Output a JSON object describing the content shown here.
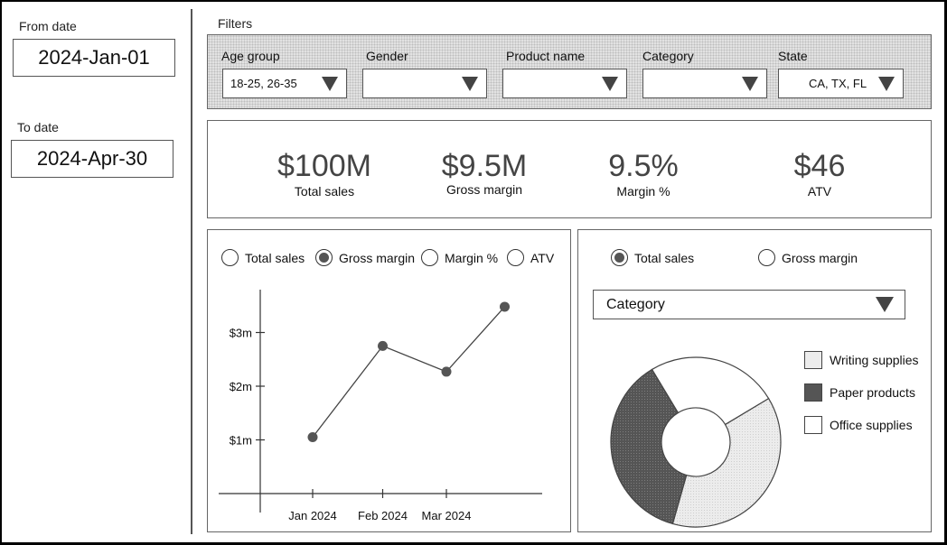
{
  "dates": {
    "from_label": "From date",
    "from_value": "2024-Jan-01",
    "to_label": "To date",
    "to_value": "2024-Apr-30"
  },
  "filters": {
    "title": "Filters",
    "items": [
      {
        "label": "Age group",
        "value": "18-25, 26-35"
      },
      {
        "label": "Gender",
        "value": ""
      },
      {
        "label": "Product name",
        "value": ""
      },
      {
        "label": "Category",
        "value": ""
      },
      {
        "label": "State",
        "value": "CA, TX, FL"
      }
    ]
  },
  "kpis": [
    {
      "value": "$100M",
      "caption": "Total sales"
    },
    {
      "value": "$9.5M",
      "caption": "Gross margin"
    },
    {
      "value": "9.5%",
      "caption": "Margin %"
    },
    {
      "value": "$46",
      "caption": "ATV"
    }
  ],
  "line_panel": {
    "options": [
      "Total sales",
      "Gross margin",
      "Margin %",
      "ATV"
    ],
    "selected": "Gross margin"
  },
  "pie_panel": {
    "options": [
      "Total sales",
      "Gross margin"
    ],
    "selected": "Total sales",
    "dropdown": "Category"
  },
  "chart_data": [
    {
      "type": "line",
      "x_ticks": [
        "Jan 2024",
        "Feb 2024",
        "Mar 2024"
      ],
      "y_ticks": [
        "$1m",
        "$2m",
        "$3m"
      ],
      "ylim": [
        0,
        4.4
      ],
      "points": [
        {
          "x": 1,
          "y": 1.05
        },
        {
          "x": 2,
          "y": 2.75
        },
        {
          "x": 3,
          "y": 2.27
        },
        {
          "x": 4,
          "y": 3.48
        }
      ]
    },
    {
      "type": "pie",
      "style": "donut",
      "slices": [
        {
          "label": "Writing supplies",
          "value": 38,
          "color": "#ececec"
        },
        {
          "label": "Paper products",
          "value": 37,
          "color": "#555555"
        },
        {
          "label": "Office supplies",
          "value": 25,
          "color": "#ffffff"
        }
      ]
    }
  ]
}
